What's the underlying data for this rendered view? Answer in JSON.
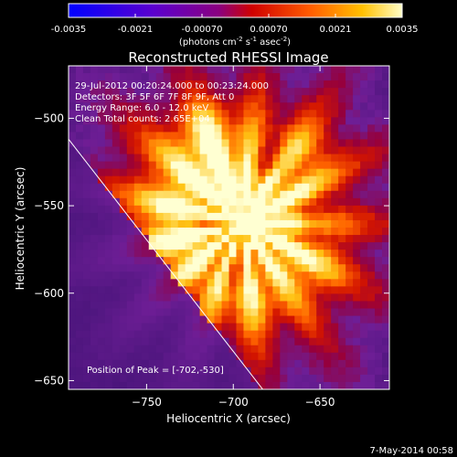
{
  "colorbar": {
    "ticks": [
      "-0.0035",
      "-0.0021",
      "-0.00070",
      "0.00070",
      "0.0021",
      "0.0035"
    ],
    "label_main": "(photons cm",
    "label_sup1": "-2",
    "label_mid": " s",
    "label_sup2": "-1",
    "label_end": " asec",
    "label_sup3": "-2",
    "label_close": ")",
    "range": [
      -0.0035,
      0.0035
    ],
    "colormap": "rhessi-fire"
  },
  "chart_data": {
    "type": "heatmap",
    "title": "Reconstructed RHESSI Image",
    "xlabel": "Heliocentric X (arcsec)",
    "ylabel": "Heliocentric Y (arcsec)",
    "xlim": [
      -795,
      -610
    ],
    "ylim": [
      -655,
      -470
    ],
    "x_ticks": [
      -750,
      -700,
      -650
    ],
    "y_ticks": [
      -500,
      -550,
      -600,
      -650
    ],
    "zlim": [
      -0.0035,
      0.0035
    ],
    "peak": [
      -702,
      -530
    ],
    "limb_line": [
      [
        -795,
        -512
      ],
      [
        -683,
        -655
      ]
    ],
    "annotations": [
      "29-Jul-2012 00:20:24.000 to 00:23:24.000",
      "Detectors: 3F 5F 6F 7F 8F 9F, Att 0",
      "Energy Range: 6.0 - 12.0 keV",
      "Clean     Total counts: 2.65E+04"
    ],
    "peak_label": "Position of Peak = [-702,-530]"
  },
  "footer": {
    "date": "7-May-2014 00:58"
  }
}
